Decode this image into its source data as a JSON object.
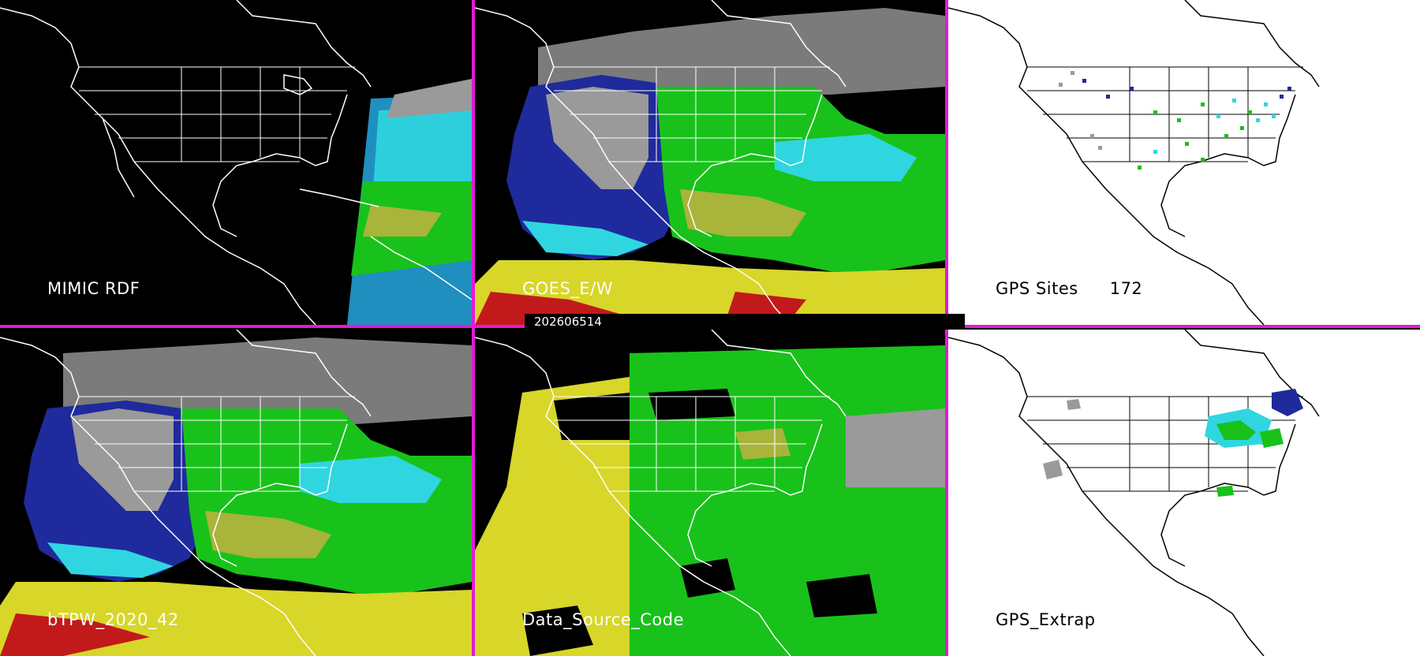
{
  "panels": {
    "mimic_rdf": {
      "label": "MIMIC RDF"
    },
    "goes_ew": {
      "label": "GOES_E/W"
    },
    "gps_sites": {
      "label": "GPS Sites",
      "count": "172"
    },
    "btpw": {
      "label": "bTPW_2020_42"
    },
    "data_source_code": {
      "label": "Data_Source_Code"
    },
    "gps_extrap": {
      "label": "GPS_Extrap"
    }
  },
  "timestamp": "202606514",
  "colors": {
    "divider": "#e21ad6",
    "map_dark_bg": "#000000",
    "map_light_bg": "#ffffff",
    "moisture_low": "#1f2a9c",
    "moisture_mid": "#2fd6e0",
    "moisture_high": "#18c21a",
    "moisture_vhigh": "#d7d629",
    "moisture_max": "#c21a1a",
    "cloud_gray": "#9a9a9a"
  }
}
